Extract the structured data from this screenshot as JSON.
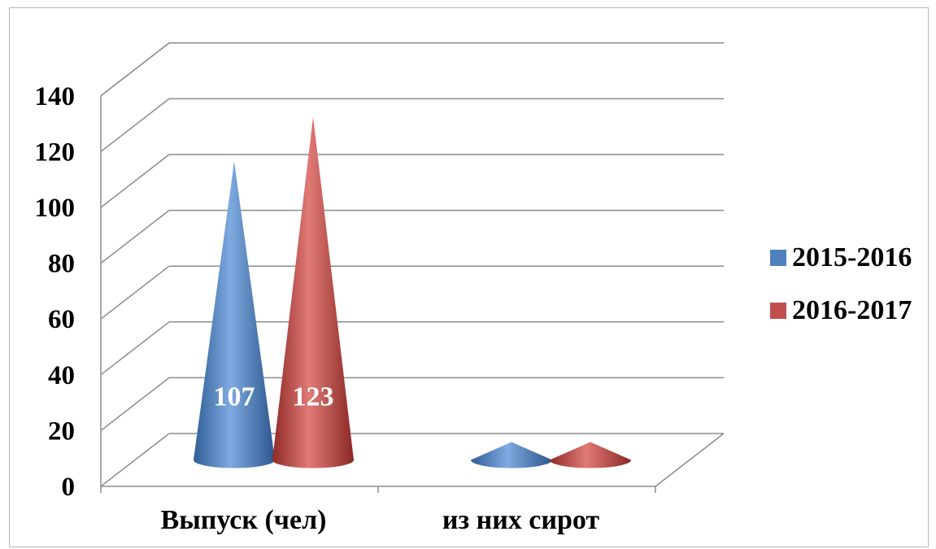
{
  "chart_data": {
    "type": "bar",
    "style": "3d-cone",
    "title": "",
    "xlabel": "",
    "ylabel": "",
    "categories": [
      "Выпуск (чел)",
      "из них сирот"
    ],
    "series": [
      {
        "name": "2015-2016",
        "values": [
          107,
          0
        ],
        "color": "#4f81bd",
        "data_labels": [
          "107",
          ""
        ]
      },
      {
        "name": "2016-2017",
        "values": [
          123,
          0
        ],
        "color": "#c0504d",
        "data_labels": [
          "123",
          ""
        ]
      }
    ],
    "yticks": [
      "0",
      "20",
      "40",
      "60",
      "80",
      "100",
      "120",
      "140"
    ],
    "ylim": [
      0,
      140
    ],
    "grid": true,
    "legend_position": "right"
  }
}
